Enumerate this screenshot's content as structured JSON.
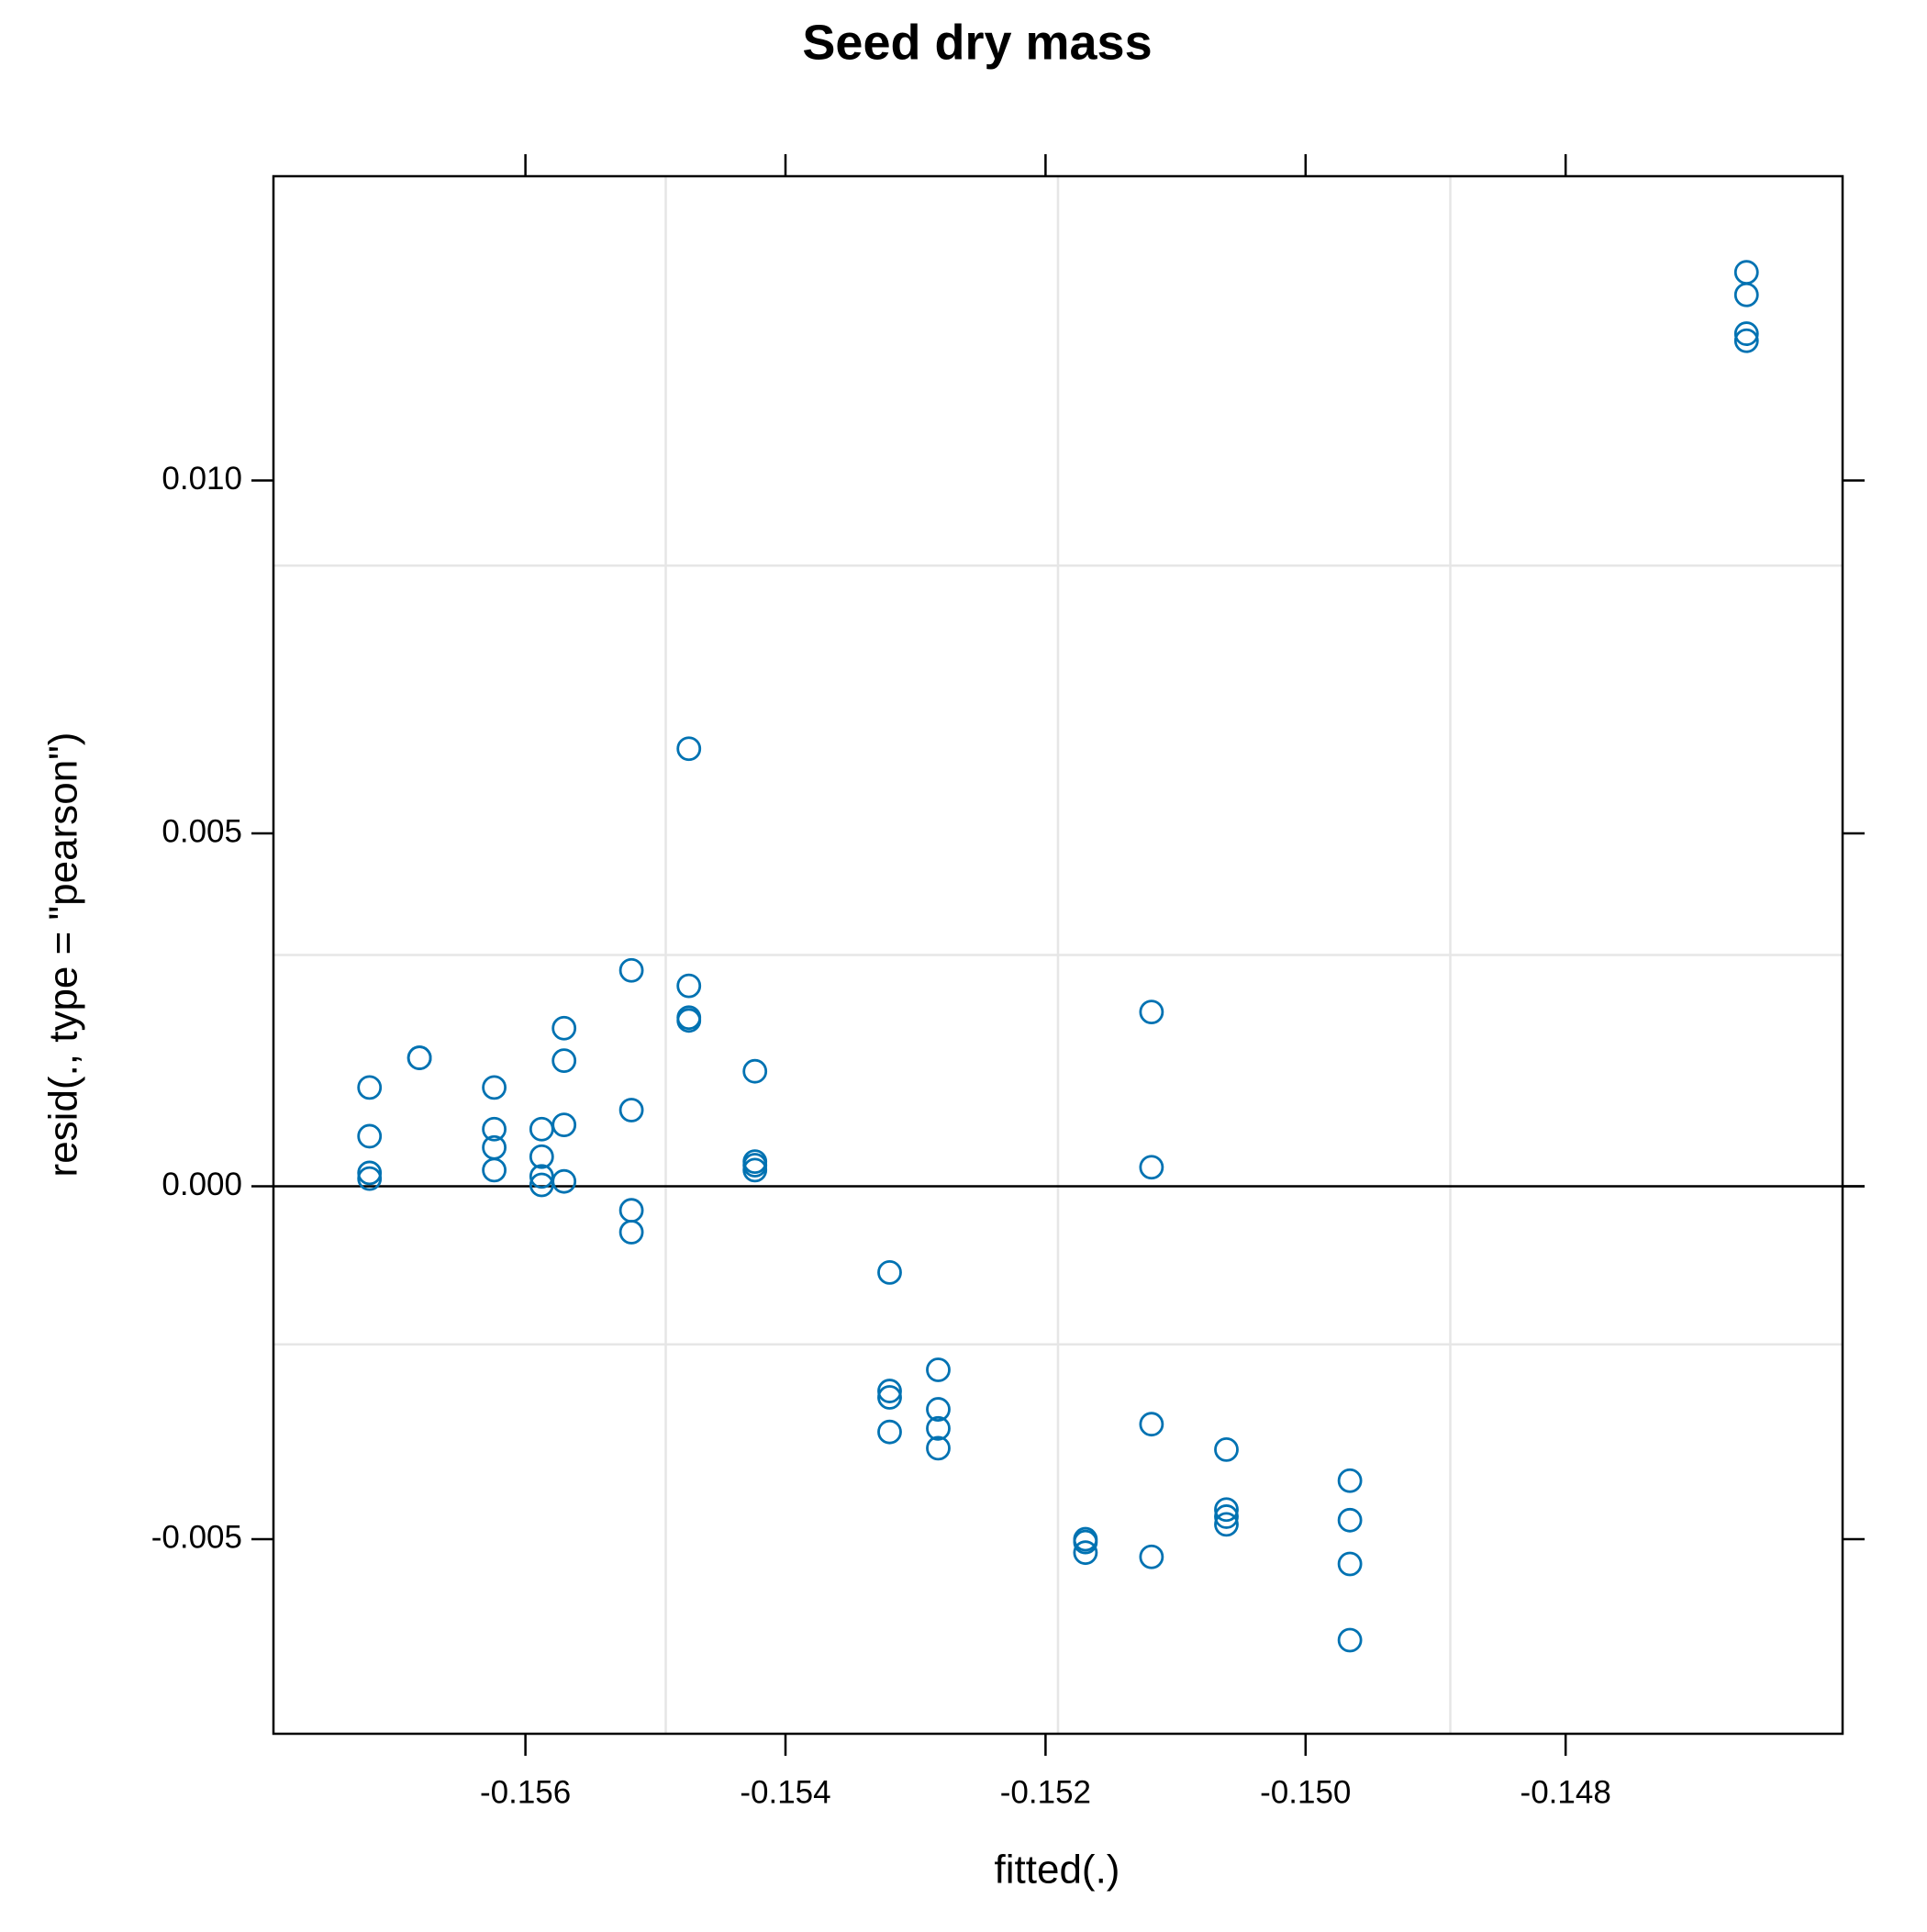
{
  "chart_data": {
    "type": "scatter",
    "title": "Seed dry mass",
    "x_label": "fitted(.)",
    "y_label": "resid(., type = \"pearson\")",
    "color": "#0072b2",
    "x": [
      -0.146609,
      -0.146609,
      -0.146609,
      -0.146609,
      -0.154743,
      -0.155185,
      -0.154743,
      -0.154743,
      -0.154743,
      -0.151185,
      -0.155703,
      -0.155703,
      -0.156815,
      -0.156815,
      -0.157199,
      -0.15624,
      -0.154235,
      -0.155185,
      -0.155703,
      -0.155875,
      -0.15624,
      -0.157199,
      -0.15624,
      -0.155875,
      -0.154235,
      -0.154235,
      -0.154235,
      -0.151185,
      -0.157199,
      -0.157199,
      -0.15624,
      -0.155875,
      -0.155875,
      -0.155703,
      -0.155185,
      -0.155185,
      -0.153199,
      -0.153199,
      -0.153199,
      -0.153199,
      -0.152825,
      -0.152825,
      -0.152825,
      -0.152825,
      -0.151185,
      -0.150609,
      -0.150609,
      -0.150609,
      -0.150609,
      -0.151693,
      -0.151693,
      -0.151693,
      -0.151185,
      -0.149659,
      -0.149659,
      -0.149659,
      -0.149659
    ],
    "y": [
      0.01295,
      0.01263,
      0.01208,
      0.01198,
      0.0062,
      0.00306,
      0.00284,
      0.00239,
      0.00235,
      0.00247,
      0.00224,
      0.00178,
      0.00182,
      0.00182,
      0.0014,
      0.0014,
      0.00163,
      0.00108,
      0.00087,
      0.00081,
      0.00081,
      0.00071,
      0.00055,
      0.00042,
      0.00035,
      0.0003,
      0.00023,
      0.00027,
      0.00019,
      0.00011,
      0.00023,
      0.00014,
      2e-05,
      7e-05,
      -0.00034,
      -0.00065,
      -0.00122,
      -0.0029,
      -0.00299,
      -0.00348,
      -0.0026,
      -0.00316,
      -0.00343,
      -0.00371,
      -0.00337,
      -0.00373,
      -0.00458,
      -0.00468,
      -0.00479,
      -0.005,
      -0.00504,
      -0.00519,
      -0.00525,
      -0.00417,
      -0.00473,
      -0.00535,
      -0.00643
    ],
    "xlim": [
      -0.157938,
      -0.14587
    ],
    "ylim": [
      -0.007756,
      0.014311
    ],
    "xticks": [
      -0.156,
      -0.154,
      -0.152,
      {
        "value": -0.15,
        "label": "-0.150"
      },
      -0.148
    ],
    "yticks": [
      {
        "value": -0.005,
        "label": "-0.005"
      },
      {
        "value": 0,
        "label": "0.000"
      },
      {
        "value": 0.005,
        "label": "0.005"
      },
      {
        "value": 0.01,
        "label": "0.010"
      }
    ],
    "reference_line": 0,
    "grid": true
  }
}
